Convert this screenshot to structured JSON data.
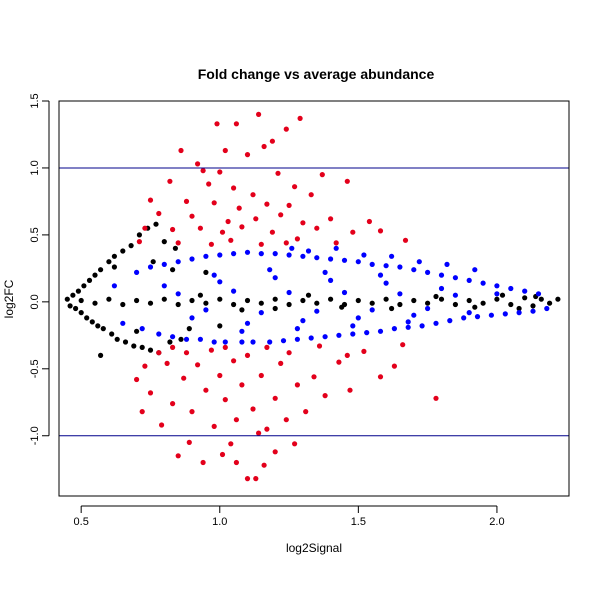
{
  "chart_data": {
    "type": "scatter",
    "title": "Fold change vs average abundance",
    "xlabel": "log2Signal",
    "ylabel": "log2FC",
    "xlim": [
      0.42,
      2.26
    ],
    "ylim": [
      -1.45,
      1.5
    ],
    "x_ticks": [
      0.5,
      1.0,
      1.5,
      2.0
    ],
    "x_tick_labels": [
      "0.5",
      "1.0",
      "1.5",
      "2.0"
    ],
    "y_ticks": [
      -1.0,
      -0.5,
      0.0,
      0.5,
      1.0,
      1.5
    ],
    "y_tick_labels": [
      "-1.0",
      "-0.5",
      "0.0",
      "0.5",
      "1.0",
      "1.5"
    ],
    "grid": false,
    "legend": "none",
    "reference_lines": [
      {
        "axis": "y",
        "value": 1.0,
        "color": "#00008B"
      },
      {
        "axis": "y",
        "value": -1.0,
        "color": "#00008B"
      }
    ],
    "series": [
      {
        "color": "#000000",
        "points": [
          [
            0.45,
            0.02
          ],
          [
            0.46,
            -0.03
          ],
          [
            0.47,
            0.05
          ],
          [
            0.48,
            -0.05
          ],
          [
            0.49,
            0.08
          ],
          [
            0.5,
            -0.08
          ],
          [
            0.51,
            0.12
          ],
          [
            0.52,
            -0.12
          ],
          [
            0.53,
            0.16
          ],
          [
            0.54,
            -0.15
          ],
          [
            0.55,
            0.2
          ],
          [
            0.56,
            -0.18
          ],
          [
            0.57,
            0.24
          ],
          [
            0.58,
            -0.2
          ],
          [
            0.6,
            0.3
          ],
          [
            0.61,
            -0.24
          ],
          [
            0.62,
            0.34
          ],
          [
            0.63,
            -0.28
          ],
          [
            0.65,
            0.38
          ],
          [
            0.66,
            -0.3
          ],
          [
            0.68,
            0.42
          ],
          [
            0.69,
            -0.33
          ],
          [
            0.71,
            0.5
          ],
          [
            0.72,
            -0.34
          ],
          [
            0.74,
            0.55
          ],
          [
            0.75,
            -0.36
          ],
          [
            0.77,
            0.58
          ],
          [
            0.78,
            -0.38
          ],
          [
            0.8,
            0.45
          ],
          [
            0.82,
            -0.3
          ],
          [
            0.84,
            0.4
          ],
          [
            0.86,
            -0.28
          ],
          [
            0.57,
            -0.4
          ],
          [
            0.62,
            0.26
          ],
          [
            0.7,
            -0.22
          ],
          [
            0.76,
            0.3
          ],
          [
            0.83,
            0.24
          ],
          [
            0.89,
            -0.2
          ],
          [
            0.95,
            0.22
          ],
          [
            1.0,
            -0.18
          ],
          [
            0.5,
            0.01
          ],
          [
            0.55,
            -0.01
          ],
          [
            0.6,
            0.02
          ],
          [
            0.65,
            -0.02
          ],
          [
            0.7,
            0.01
          ],
          [
            0.75,
            -0.01
          ],
          [
            0.8,
            0.02
          ],
          [
            0.85,
            -0.02
          ],
          [
            0.9,
            0.01
          ],
          [
            0.95,
            -0.01
          ],
          [
            1.0,
            0.02
          ],
          [
            1.05,
            -0.02
          ],
          [
            1.1,
            0.01
          ],
          [
            1.15,
            -0.01
          ],
          [
            1.2,
            0.02
          ],
          [
            1.25,
            -0.02
          ],
          [
            1.3,
            0.01
          ],
          [
            1.35,
            -0.01
          ],
          [
            1.4,
            0.02
          ],
          [
            1.45,
            -0.02
          ],
          [
            1.5,
            0.01
          ],
          [
            1.55,
            -0.01
          ],
          [
            1.6,
            0.02
          ],
          [
            1.65,
            -0.02
          ],
          [
            1.7,
            0.01
          ],
          [
            1.75,
            -0.01
          ],
          [
            1.8,
            0.02
          ],
          [
            1.85,
            -0.02
          ],
          [
            1.9,
            0.01
          ],
          [
            1.95,
            -0.01
          ],
          [
            2.0,
            0.02
          ],
          [
            2.05,
            -0.02
          ],
          [
            2.1,
            0.03
          ],
          [
            2.13,
            -0.03
          ],
          [
            2.16,
            0.02
          ],
          [
            2.19,
            -0.01
          ],
          [
            2.22,
            0.02
          ],
          [
            1.62,
            -0.05
          ],
          [
            1.78,
            0.04
          ],
          [
            1.92,
            -0.04
          ],
          [
            2.02,
            0.05
          ],
          [
            2.08,
            -0.05
          ],
          [
            2.14,
            0.04
          ],
          [
            1.2,
            -0.05
          ],
          [
            1.32,
            0.05
          ],
          [
            1.44,
            -0.04
          ],
          [
            0.93,
            0.05
          ],
          [
            1.08,
            -0.06
          ]
        ]
      },
      {
        "color": "#0000FF",
        "points": [
          [
            0.62,
            0.12
          ],
          [
            0.65,
            -0.16
          ],
          [
            0.7,
            0.22
          ],
          [
            0.72,
            -0.2
          ],
          [
            0.75,
            0.26
          ],
          [
            0.78,
            -0.24
          ],
          [
            0.8,
            0.28
          ],
          [
            0.83,
            -0.26
          ],
          [
            0.85,
            0.3
          ],
          [
            0.88,
            -0.28
          ],
          [
            0.9,
            0.32
          ],
          [
            0.93,
            -0.28
          ],
          [
            0.95,
            0.34
          ],
          [
            0.98,
            -0.3
          ],
          [
            1.0,
            0.35
          ],
          [
            1.02,
            -0.3
          ],
          [
            1.05,
            0.36
          ],
          [
            1.08,
            -0.3
          ],
          [
            1.1,
            0.37
          ],
          [
            1.12,
            -0.3
          ],
          [
            1.15,
            0.36
          ],
          [
            1.18,
            -0.3
          ],
          [
            1.2,
            0.36
          ],
          [
            1.23,
            -0.29
          ],
          [
            1.25,
            0.35
          ],
          [
            1.28,
            -0.28
          ],
          [
            1.3,
            0.34
          ],
          [
            1.33,
            -0.27
          ],
          [
            1.35,
            0.33
          ],
          [
            1.38,
            -0.26
          ],
          [
            1.4,
            0.32
          ],
          [
            1.43,
            -0.25
          ],
          [
            1.45,
            0.31
          ],
          [
            1.48,
            -0.24
          ],
          [
            1.5,
            0.3
          ],
          [
            1.53,
            -0.23
          ],
          [
            1.55,
            0.28
          ],
          [
            1.58,
            -0.22
          ],
          [
            1.6,
            0.27
          ],
          [
            1.63,
            -0.2
          ],
          [
            1.65,
            0.26
          ],
          [
            1.68,
            -0.19
          ],
          [
            1.7,
            0.24
          ],
          [
            1.73,
            -0.18
          ],
          [
            1.75,
            0.22
          ],
          [
            1.78,
            -0.16
          ],
          [
            1.8,
            0.2
          ],
          [
            1.83,
            -0.14
          ],
          [
            1.85,
            0.18
          ],
          [
            1.88,
            -0.12
          ],
          [
            1.9,
            0.16
          ],
          [
            1.93,
            -0.11
          ],
          [
            1.95,
            0.14
          ],
          [
            1.98,
            -0.1
          ],
          [
            2.0,
            0.12
          ],
          [
            2.03,
            -0.09
          ],
          [
            2.05,
            0.1
          ],
          [
            2.08,
            -0.08
          ],
          [
            2.1,
            0.08
          ],
          [
            2.13,
            -0.07
          ],
          [
            2.15,
            0.06
          ],
          [
            2.18,
            -0.05
          ],
          [
            0.8,
            0.12
          ],
          [
            0.9,
            -0.12
          ],
          [
            1.0,
            0.15
          ],
          [
            1.1,
            -0.16
          ],
          [
            1.2,
            0.18
          ],
          [
            1.3,
            -0.14
          ],
          [
            1.4,
            0.16
          ],
          [
            1.5,
            -0.12
          ],
          [
            1.6,
            0.14
          ],
          [
            1.7,
            -0.1
          ],
          [
            1.8,
            0.1
          ],
          [
            1.9,
            -0.08
          ],
          [
            2.0,
            0.06
          ],
          [
            0.85,
            0.06
          ],
          [
            0.95,
            -0.06
          ],
          [
            1.05,
            0.08
          ],
          [
            1.15,
            -0.08
          ],
          [
            1.25,
            0.07
          ],
          [
            1.35,
            -0.07
          ],
          [
            1.45,
            0.07
          ],
          [
            1.55,
            -0.06
          ],
          [
            1.65,
            0.06
          ],
          [
            1.75,
            -0.05
          ],
          [
            1.85,
            0.05
          ],
          [
            0.98,
            0.2
          ],
          [
            1.08,
            -0.22
          ],
          [
            1.18,
            0.24
          ],
          [
            1.28,
            -0.2
          ],
          [
            1.38,
            0.22
          ],
          [
            1.48,
            -0.18
          ],
          [
            1.58,
            0.2
          ],
          [
            1.68,
            -0.15
          ],
          [
            1.26,
            0.4
          ],
          [
            1.32,
            0.38
          ],
          [
            1.42,
            0.4
          ],
          [
            1.52,
            0.35
          ],
          [
            1.62,
            0.34
          ],
          [
            1.72,
            0.3
          ],
          [
            1.82,
            0.28
          ],
          [
            1.92,
            0.24
          ]
        ]
      },
      {
        "color": "#E3001B",
        "points": [
          [
            1.14,
            1.4
          ],
          [
            1.29,
            1.37
          ],
          [
            0.99,
            1.33
          ],
          [
            1.06,
            1.33
          ],
          [
            1.24,
            1.29
          ],
          [
            1.19,
            1.2
          ],
          [
            0.86,
            1.13
          ],
          [
            1.02,
            1.13
          ],
          [
            1.1,
            1.1
          ],
          [
            1.16,
            1.16
          ],
          [
            0.92,
            1.03
          ],
          [
            0.94,
            0.98
          ],
          [
            1.0,
            0.97
          ],
          [
            1.21,
            0.96
          ],
          [
            1.37,
            0.95
          ],
          [
            1.46,
            0.9
          ],
          [
            0.82,
            0.9
          ],
          [
            0.96,
            0.88
          ],
          [
            1.05,
            0.85
          ],
          [
            1.12,
            0.8
          ],
          [
            1.27,
            0.86
          ],
          [
            1.33,
            0.8
          ],
          [
            0.75,
            0.76
          ],
          [
            0.88,
            0.75
          ],
          [
            0.98,
            0.74
          ],
          [
            1.07,
            0.7
          ],
          [
            1.17,
            0.73
          ],
          [
            1.25,
            0.72
          ],
          [
            0.78,
            0.66
          ],
          [
            0.9,
            0.64
          ],
          [
            1.03,
            0.6
          ],
          [
            1.13,
            0.62
          ],
          [
            1.22,
            0.65
          ],
          [
            1.3,
            0.59
          ],
          [
            1.4,
            0.62
          ],
          [
            1.54,
            0.6
          ],
          [
            0.73,
            0.55
          ],
          [
            0.83,
            0.54
          ],
          [
            0.93,
            0.55
          ],
          [
            1.01,
            0.52
          ],
          [
            1.08,
            0.56
          ],
          [
            1.19,
            0.52
          ],
          [
            1.35,
            0.55
          ],
          [
            1.48,
            0.52
          ],
          [
            1.58,
            0.53
          ],
          [
            1.67,
            0.46
          ],
          [
            0.71,
            0.45
          ],
          [
            0.85,
            0.44
          ],
          [
            0.97,
            0.43
          ],
          [
            1.04,
            0.46
          ],
          [
            1.15,
            0.43
          ],
          [
            1.24,
            0.44
          ],
          [
            1.28,
            0.47
          ],
          [
            1.42,
            0.44
          ],
          [
            1.1,
            -1.32
          ],
          [
            1.13,
            -1.32
          ],
          [
            1.16,
            -1.22
          ],
          [
            1.06,
            -1.2
          ],
          [
            0.94,
            -1.2
          ],
          [
            0.85,
            -1.15
          ],
          [
            1.2,
            -1.12
          ],
          [
            1.27,
            -1.06
          ],
          [
            1.04,
            -1.06
          ],
          [
            1.01,
            -1.14
          ],
          [
            0.89,
            -1.05
          ],
          [
            1.14,
            -0.98
          ],
          [
            0.79,
            -0.92
          ],
          [
            0.98,
            -0.93
          ],
          [
            1.17,
            -0.95
          ],
          [
            1.06,
            -0.88
          ],
          [
            1.24,
            -0.88
          ],
          [
            0.72,
            -0.82
          ],
          [
            0.9,
            -0.82
          ],
          [
            1.12,
            -0.8
          ],
          [
            1.31,
            -0.82
          ],
          [
            0.83,
            -0.76
          ],
          [
            1.02,
            -0.73
          ],
          [
            1.2,
            -0.72
          ],
          [
            1.38,
            -0.7
          ],
          [
            1.78,
            -0.72
          ],
          [
            0.75,
            -0.68
          ],
          [
            0.95,
            -0.66
          ],
          [
            1.08,
            -0.62
          ],
          [
            1.28,
            -0.62
          ],
          [
            1.47,
            -0.66
          ],
          [
            0.7,
            -0.58
          ],
          [
            0.87,
            -0.57
          ],
          [
            1.0,
            -0.55
          ],
          [
            1.15,
            -0.55
          ],
          [
            1.34,
            -0.56
          ],
          [
            1.58,
            -0.56
          ],
          [
            0.73,
            -0.48
          ],
          [
            0.81,
            -0.46
          ],
          [
            0.92,
            -0.47
          ],
          [
            1.05,
            -0.44
          ],
          [
            1.22,
            -0.46
          ],
          [
            1.43,
            -0.45
          ],
          [
            1.63,
            -0.48
          ],
          [
            0.78,
            -0.38
          ],
          [
            0.88,
            -0.38
          ],
          [
            0.97,
            -0.36
          ],
          [
            1.1,
            -0.4
          ],
          [
            1.25,
            -0.38
          ],
          [
            1.52,
            -0.37
          ],
          [
            1.66,
            -0.32
          ],
          [
            0.83,
            -0.34
          ],
          [
            1.02,
            -0.34
          ],
          [
            1.17,
            -0.34
          ],
          [
            1.36,
            -0.33
          ],
          [
            1.46,
            -0.4
          ]
        ]
      }
    ]
  }
}
